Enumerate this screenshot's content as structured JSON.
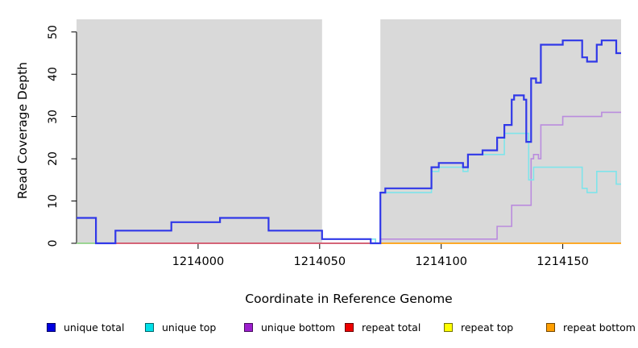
{
  "chart_data": {
    "type": "step-line",
    "title": "",
    "xlabel": "Coordinate in Reference Genome",
    "ylabel": "Read Coverage Depth",
    "xlim": [
      1213950,
      1214174
    ],
    "ylim": [
      0,
      53
    ],
    "grid": false,
    "plot_bg_color": "#d9d9d9",
    "gap_region": {
      "from": 1214051,
      "to": 1214075,
      "color": "#ffffff"
    },
    "axis_color": "#000000",
    "xticks": [
      {
        "value": 1214000,
        "label": "1214000"
      },
      {
        "value": 1214050,
        "label": "1214050"
      },
      {
        "value": 1214100,
        "label": "1214100"
      },
      {
        "value": 1214150,
        "label": "1214150"
      }
    ],
    "yticks": [
      {
        "value": 0,
        "label": "0"
      },
      {
        "value": 10,
        "label": "10"
      },
      {
        "value": 20,
        "label": "20"
      },
      {
        "value": 30,
        "label": "30"
      },
      {
        "value": 40,
        "label": "40"
      },
      {
        "value": 50,
        "label": "50"
      }
    ],
    "series": [
      {
        "name": "repeat-top",
        "color": "#ffff33",
        "width": 1.6,
        "points": [
          [
            1213950,
            0
          ]
        ]
      },
      {
        "name": "baseline-blend",
        "color": "#8fd195",
        "width": 1.8,
        "points": [
          [
            1213950,
            0
          ]
        ],
        "xend": 1213958
      },
      {
        "name": "unique-bottom",
        "color": "#ba8cde",
        "width": 1.6,
        "points": [
          [
            1213950,
            6
          ],
          [
            1213958,
            0
          ],
          [
            1214075,
            1
          ],
          [
            1214123,
            4
          ],
          [
            1214129,
            9
          ],
          [
            1214137,
            20
          ],
          [
            1214138,
            21
          ],
          [
            1214140,
            20
          ],
          [
            1214141,
            28
          ],
          [
            1214150,
            30
          ],
          [
            1214166,
            31
          ]
        ]
      },
      {
        "name": "repeat-total",
        "color": "#d4566e",
        "width": 1.7,
        "points": [
          [
            1213958,
            0
          ]
        ],
        "xend": 1214075
      },
      {
        "name": "repeat-bottom",
        "color": "#ff9e1a",
        "width": 1.8,
        "points": [
          [
            1214074,
            0
          ]
        ]
      },
      {
        "name": "unique-top",
        "color": "#7fe4ea",
        "width": 1.6,
        "points": [
          [
            1214051,
            1
          ],
          [
            1214073,
            0
          ],
          [
            1214075,
            12
          ],
          [
            1214096,
            17
          ],
          [
            1214099,
            18
          ],
          [
            1214109,
            17
          ],
          [
            1214111,
            21
          ],
          [
            1214126,
            26
          ],
          [
            1214136,
            15
          ],
          [
            1214138,
            18
          ],
          [
            1214158,
            13
          ],
          [
            1214160,
            12
          ],
          [
            1214164,
            17
          ],
          [
            1214172,
            14
          ]
        ]
      },
      {
        "name": "unique-total",
        "color": "#3038e8",
        "width": 2.2,
        "points": [
          [
            1213950,
            6
          ],
          [
            1213958,
            0
          ],
          [
            1213966,
            3
          ],
          [
            1213989,
            5
          ],
          [
            1214009,
            6
          ],
          [
            1214029,
            3
          ],
          [
            1214051,
            1
          ],
          [
            1214071,
            0
          ],
          [
            1214075,
            12
          ],
          [
            1214077,
            13
          ],
          [
            1214096,
            18
          ],
          [
            1214099,
            19
          ],
          [
            1214109,
            18
          ],
          [
            1214111,
            21
          ],
          [
            1214117,
            22
          ],
          [
            1214123,
            25
          ],
          [
            1214126,
            28
          ],
          [
            1214129,
            34
          ],
          [
            1214130,
            35
          ],
          [
            1214134,
            34
          ],
          [
            1214135,
            24
          ],
          [
            1214137,
            39
          ],
          [
            1214139,
            38
          ],
          [
            1214141,
            47
          ],
          [
            1214150,
            48
          ],
          [
            1214158,
            44
          ],
          [
            1214160,
            43
          ],
          [
            1214164,
            47
          ],
          [
            1214166,
            48
          ],
          [
            1214172,
            45
          ]
        ]
      }
    ],
    "legend": [
      {
        "label": "unique total",
        "color": "#0000e0"
      },
      {
        "label": "unique top",
        "color": "#00e0e8"
      },
      {
        "label": "unique bottom",
        "color": "#9d1fce"
      },
      {
        "label": "repeat total",
        "color": "#ee0000"
      },
      {
        "label": "repeat top",
        "color": "#ffff00"
      },
      {
        "label": "repeat bottom",
        "color": "#ff9e00"
      }
    ],
    "legend_position": "bottom"
  }
}
